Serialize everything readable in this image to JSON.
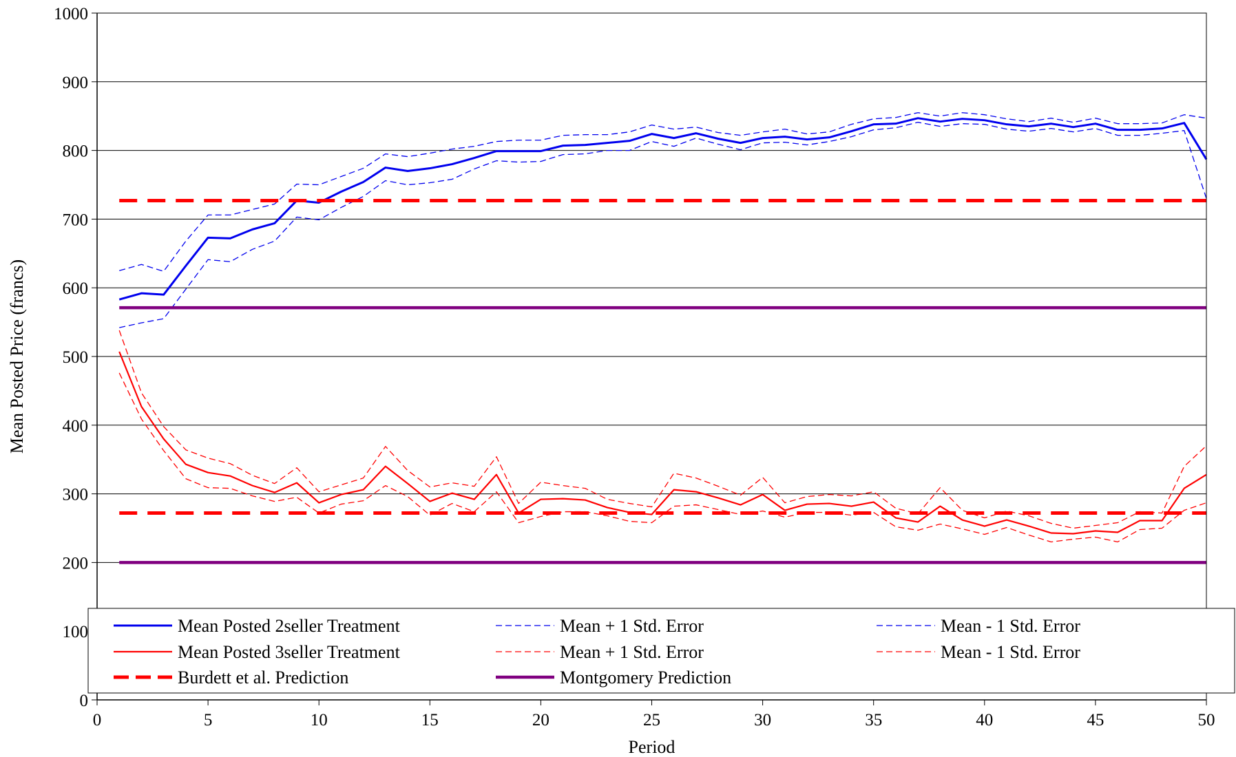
{
  "chart_data": {
    "type": "line",
    "xlabel": "Period",
    "ylabel": "Mean Posted Price (francs)",
    "xlim": [
      0,
      50
    ],
    "ylim": [
      0,
      1000
    ],
    "xticks": [
      0,
      5,
      10,
      15,
      20,
      25,
      30,
      35,
      40,
      45,
      50
    ],
    "yticks": [
      0,
      100,
      200,
      300,
      400,
      500,
      600,
      700,
      800,
      900,
      1000
    ],
    "grid": "horizontal",
    "legend_position": "bottom",
    "series": [
      {
        "name": "Mean Posted 2seller Treatment",
        "color": "#0000ee",
        "style": "solid",
        "width": 3,
        "values": [
          583,
          592,
          590,
          632,
          673,
          672,
          685,
          694,
          727,
          724,
          740,
          754,
          775,
          770,
          774,
          780,
          789,
          799,
          799,
          799,
          807,
          808,
          811,
          814,
          824,
          818,
          825,
          817,
          811,
          818,
          820,
          816,
          819,
          828,
          838,
          839,
          847,
          842,
          846,
          844,
          838,
          835,
          839,
          834,
          839,
          830,
          830,
          832,
          840,
          787
        ]
      },
      {
        "name": "Mean + 1 Std. Error",
        "color": "#0000ee",
        "style": "dash",
        "width": 1.3,
        "values": [
          625,
          634,
          624,
          668,
          706,
          706,
          714,
          722,
          751,
          750,
          762,
          774,
          795,
          791,
          796,
          802,
          806,
          813,
          815,
          815,
          822,
          823,
          823,
          827,
          837,
          831,
          834,
          826,
          822,
          827,
          831,
          824,
          827,
          838,
          846,
          848,
          855,
          850,
          855,
          852,
          846,
          842,
          847,
          841,
          847,
          839,
          839,
          840,
          852,
          847
        ]
      },
      {
        "name": "Mean - 1 Std. Error",
        "color": "#0000ee",
        "style": "dash",
        "width": 1.3,
        "values": [
          542,
          549,
          555,
          598,
          641,
          638,
          656,
          668,
          703,
          699,
          717,
          733,
          756,
          750,
          753,
          758,
          773,
          785,
          783,
          784,
          794,
          795,
          800,
          800,
          813,
          806,
          818,
          809,
          801,
          811,
          812,
          808,
          813,
          820,
          830,
          833,
          841,
          835,
          839,
          838,
          831,
          828,
          832,
          827,
          832,
          822,
          822,
          825,
          829,
          730
        ]
      },
      {
        "name": "Mean Posted 3seller Treatment",
        "color": "#ff0000",
        "style": "solid",
        "width": 2.2,
        "values": [
          507,
          427,
          380,
          343,
          331,
          326,
          312,
          302,
          316,
          287,
          299,
          306,
          340,
          315,
          289,
          301,
          292,
          328,
          272,
          292,
          293,
          291,
          280,
          273,
          270,
          306,
          303,
          294,
          284,
          299,
          276,
          285,
          286,
          282,
          288,
          265,
          259,
          282,
          262,
          253,
          262,
          253,
          243,
          242,
          246,
          244,
          261,
          261,
          308,
          328
        ]
      },
      {
        "name": "Mean + 1 Std. Error",
        "color": "#ff0000",
        "style": "dash",
        "width": 1.3,
        "values": [
          538,
          447,
          398,
          364,
          352,
          344,
          327,
          315,
          338,
          303,
          313,
          323,
          369,
          334,
          310,
          316,
          311,
          354,
          286,
          317,
          312,
          308,
          292,
          286,
          281,
          330,
          323,
          311,
          298,
          324,
          287,
          296,
          299,
          297,
          303,
          279,
          271,
          309,
          276,
          265,
          275,
          268,
          257,
          250,
          254,
          258,
          274,
          272,
          340,
          370
        ]
      },
      {
        "name": "Mean - 1 Std. Error",
        "color": "#ff0000",
        "style": "dash",
        "width": 1.3,
        "values": [
          476,
          409,
          363,
          322,
          309,
          308,
          297,
          289,
          295,
          272,
          285,
          290,
          312,
          296,
          269,
          286,
          274,
          303,
          258,
          267,
          274,
          274,
          268,
          260,
          258,
          282,
          284,
          277,
          270,
          275,
          266,
          273,
          273,
          269,
          273,
          252,
          247,
          256,
          249,
          241,
          251,
          240,
          230,
          234,
          237,
          230,
          248,
          250,
          276,
          287
        ]
      },
      {
        "name": "Burdett et al. Prediction",
        "color": "#ff0000",
        "style": "heavy-dash",
        "width": 5,
        "values_2seller": 727,
        "values_3seller": 272
      },
      {
        "name": "Montgomery Prediction",
        "color": "#800080",
        "style": "solid",
        "width": 4.5,
        "values_2seller": 571,
        "values_3seller": 200
      }
    ],
    "legend": [
      [
        "Mean Posted 2seller Treatment",
        "Mean + 1 Std. Error",
        "Mean - 1 Std. Error"
      ],
      [
        "Mean Posted 3seller Treatment",
        "Mean + 1 Std. Error",
        "Mean - 1 Std. Error"
      ],
      [
        "Burdett et al. Prediction",
        "Montgomery Prediction"
      ]
    ]
  }
}
